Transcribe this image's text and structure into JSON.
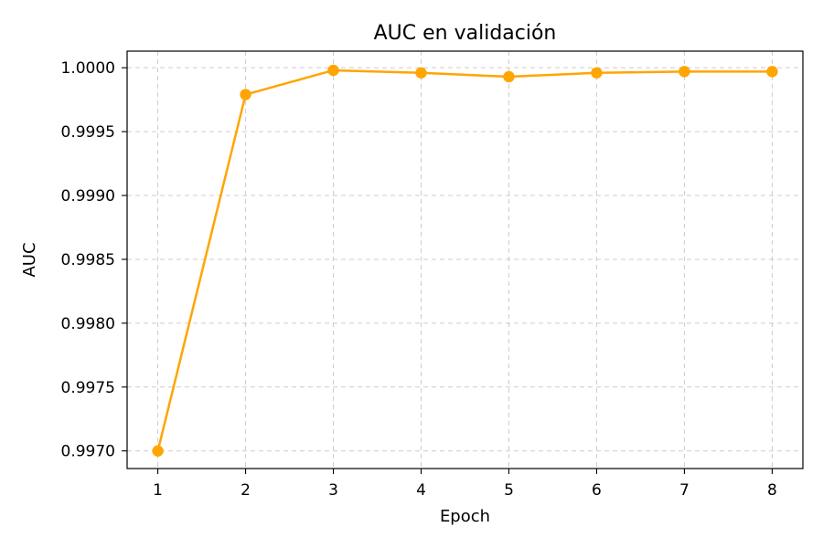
{
  "chart_data": {
    "type": "line",
    "title": "AUC en validación",
    "xlabel": "Epoch",
    "ylabel": "AUC",
    "x": [
      1,
      2,
      3,
      4,
      5,
      6,
      7,
      8
    ],
    "series": [
      {
        "values": [
          0.997,
          0.99979,
          0.99998,
          0.99996,
          0.99993,
          0.99996,
          0.99997,
          0.99997
        ],
        "color": "#ffa500"
      }
    ],
    "xticks": [
      "1",
      "2",
      "3",
      "4",
      "5",
      "6",
      "7",
      "8"
    ],
    "yticks": [
      0.997,
      0.9975,
      0.998,
      0.9985,
      0.999,
      0.9995,
      1.0
    ],
    "ytick_labels": [
      "0.9970",
      "0.9975",
      "0.9980",
      "0.9985",
      "0.9990",
      "0.9995",
      "1.0000"
    ],
    "xlim": [
      0.65,
      8.35
    ],
    "ylim": [
      0.996862,
      1.00013
    ],
    "grid": true,
    "grid_style": "dashed",
    "marker": "circle"
  }
}
